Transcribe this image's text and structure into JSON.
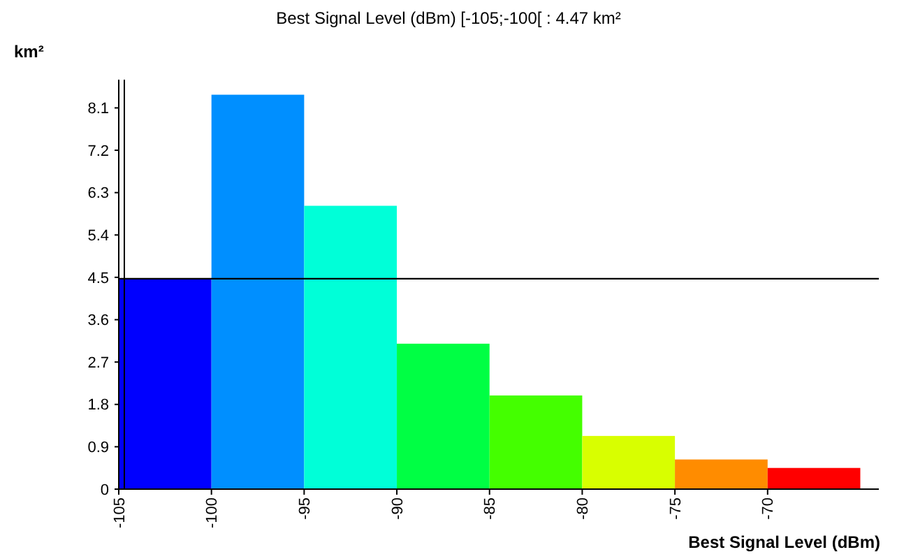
{
  "chart_data": {
    "type": "histogram",
    "title": "Best Signal Level (dBm)  [-105;-100[  : 4.47 km²",
    "xlabel": "Best Signal Level (dBm)",
    "ylabel": "km²",
    "bins": [
      -105,
      -100,
      -95,
      -90,
      -85,
      -80,
      -75,
      -70,
      -65
    ],
    "values": [
      4.47,
      8.38,
      6.02,
      3.09,
      1.99,
      1.13,
      0.63,
      0.45
    ],
    "colors": [
      "#0000ff",
      "#008fff",
      "#00ffd8",
      "#00ff44",
      "#44ff00",
      "#d8ff00",
      "#ff8c00",
      "#ff0000"
    ],
    "xlim": [
      -105,
      -64
    ],
    "xticks": [
      -105,
      -100,
      -95,
      -90,
      -85,
      -80,
      -75,
      -70
    ],
    "ylim": [
      0,
      8.7
    ],
    "yticks": [
      0,
      0.9,
      1.8,
      2.7,
      3.6,
      4.5,
      5.4,
      6.3,
      7.2,
      8.1
    ],
    "ref_lines": [
      {
        "axis": "y",
        "value": 4.47,
        "color": "#000000"
      },
      {
        "axis": "x",
        "value": -104.7,
        "color": "#000000"
      }
    ],
    "grid": false
  }
}
